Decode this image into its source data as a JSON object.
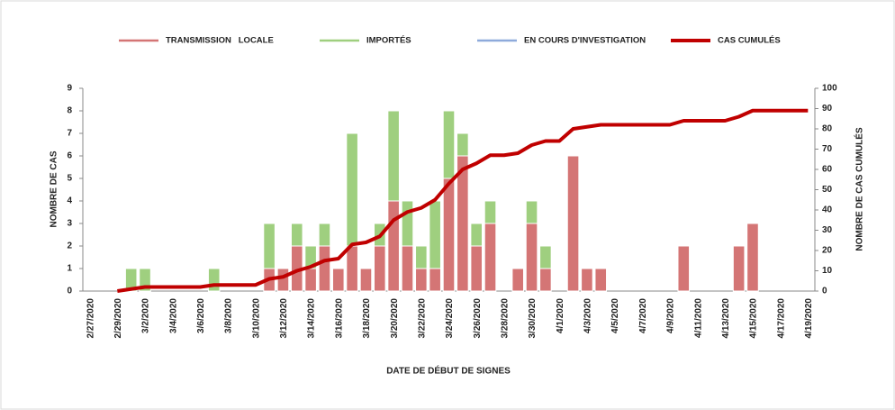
{
  "chart_data": {
    "type": "bar",
    "stacked": true,
    "xlabel": "DATE DE DÉBUT DE SIGNES",
    "ylabel": "NOMBRE DE CAS",
    "y2label": "NOMBRE DE CAS CUMULÉS",
    "legend": "top",
    "categories": [
      "2/27/2020",
      null,
      "2/29/2020",
      null,
      "3/2/2020",
      null,
      "3/4/2020",
      null,
      "3/6/2020",
      null,
      "3/8/2020",
      null,
      "3/10/2020",
      null,
      "3/12/2020",
      null,
      "3/14/2020",
      null,
      "3/16/2020",
      null,
      "3/18/2020",
      null,
      "3/20/2020",
      null,
      "3/22/2020",
      null,
      "3/24/2020",
      null,
      "3/26/2020",
      null,
      "3/28/2020",
      null,
      "3/30/2020",
      null,
      "4/1/2020",
      null,
      "4/3/2020",
      null,
      "4/5/2020",
      null,
      "4/7/2020",
      null,
      "4/9/2020",
      null,
      "4/11/2020",
      null,
      "4/13/2020",
      null,
      "4/15/2020",
      null,
      "4/17/2020",
      null,
      "4/19/2020"
    ],
    "series": [
      {
        "name": "TRANSMISSION   LOCALE",
        "type": "bar",
        "color": "#d47575",
        "values": [
          0,
          0,
          0,
          0,
          0,
          0,
          0,
          0,
          0,
          0,
          0,
          0,
          0,
          1,
          1,
          2,
          1,
          2,
          1,
          2,
          1,
          2,
          4,
          2,
          1,
          1,
          5,
          6,
          2,
          3,
          0,
          1,
          3,
          1,
          0,
          6,
          1,
          1,
          0,
          0,
          0,
          0,
          0,
          2,
          0,
          0,
          0,
          2,
          3,
          0,
          0,
          0,
          0
        ]
      },
      {
        "name": "IMPORTÉS",
        "type": "bar",
        "color": "#9fcf7f",
        "values": [
          0,
          0,
          0,
          1,
          1,
          0,
          0,
          0,
          0,
          1,
          0,
          0,
          0,
          2,
          0,
          1,
          1,
          1,
          0,
          5,
          0,
          1,
          4,
          2,
          1,
          3,
          3,
          1,
          1,
          1,
          0,
          0,
          1,
          1,
          0,
          0,
          0,
          0,
          0,
          0,
          0,
          0,
          0,
          0,
          0,
          0,
          0,
          0,
          0,
          0,
          0,
          0,
          0
        ]
      },
      {
        "name": "EN COURS D'INVESTIGATION",
        "type": "bar",
        "color": "#8eaadb",
        "values": [
          0,
          0,
          0,
          0,
          0,
          0,
          0,
          0,
          0,
          0,
          0,
          0,
          0,
          0,
          0,
          0,
          0,
          0,
          0,
          0,
          0,
          0,
          0,
          0,
          0,
          0,
          0,
          0,
          0,
          0,
          0,
          0,
          0,
          0,
          0,
          0,
          0,
          0,
          0,
          0,
          0,
          0,
          0,
          0,
          0,
          0,
          0,
          0,
          0,
          0,
          0,
          0,
          0
        ]
      },
      {
        "name": "CAS CUMULÉS",
        "type": "line",
        "axis": "y2",
        "color": "#c00000",
        "values": [
          null,
          null,
          0,
          1,
          2,
          2,
          2,
          2,
          2,
          3,
          3,
          3,
          3,
          6,
          7,
          10,
          12,
          15,
          16,
          23,
          24,
          27,
          35,
          39,
          41,
          45,
          53,
          60,
          63,
          67,
          67,
          68,
          72,
          74,
          74,
          80,
          81,
          82,
          82,
          82,
          82,
          82,
          82,
          84,
          84,
          84,
          84,
          86,
          89,
          89,
          89,
          89,
          89
        ]
      }
    ],
    "ylim": [
      0,
      9
    ],
    "yticks": [
      0,
      1,
      2,
      3,
      4,
      5,
      6,
      7,
      8,
      9
    ],
    "y2lim": [
      0,
      100
    ],
    "y2ticks": [
      0,
      10,
      20,
      30,
      40,
      50,
      60,
      70,
      80,
      90,
      100
    ]
  }
}
